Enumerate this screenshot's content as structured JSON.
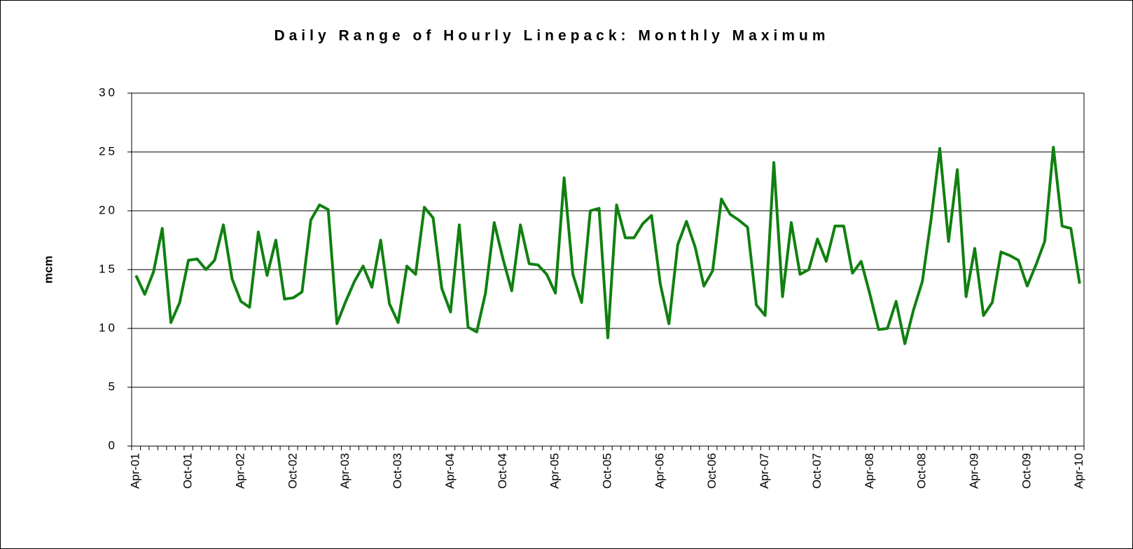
{
  "chart_data": {
    "type": "line",
    "title": "Daily Range of Hourly Linepack: Monthly Maximum",
    "y_label": "mcm",
    "categories": [
      "Apr-01",
      null,
      null,
      null,
      null,
      null,
      "Oct-01",
      null,
      null,
      null,
      null,
      null,
      "Apr-02",
      null,
      null,
      null,
      null,
      null,
      "Oct-02",
      null,
      null,
      null,
      null,
      null,
      "Apr-03",
      null,
      null,
      null,
      null,
      null,
      "Oct-03",
      null,
      null,
      null,
      null,
      null,
      "Apr-04",
      null,
      null,
      null,
      null,
      null,
      "Oct-04",
      null,
      null,
      null,
      null,
      null,
      "Apr-05",
      null,
      null,
      null,
      null,
      null,
      "Oct-05",
      null,
      null,
      null,
      null,
      null,
      "Apr-06",
      null,
      null,
      null,
      null,
      null,
      "Oct-06",
      null,
      null,
      null,
      null,
      null,
      "Apr-07",
      null,
      null,
      null,
      null,
      null,
      "Oct-07",
      null,
      null,
      null,
      null,
      null,
      "Apr-08",
      null,
      null,
      null,
      null,
      null,
      "Oct-08",
      null,
      null,
      null,
      null,
      null,
      "Apr-09",
      null,
      null,
      null,
      null,
      null,
      "Oct-09",
      null,
      null,
      null,
      null,
      null,
      "Apr-10"
    ],
    "series": [
      {
        "color": "#108010",
        "values": [
          14.5,
          12.9,
          14.8,
          18.5,
          10.5,
          12.2,
          15.8,
          15.9,
          15.0,
          15.8,
          18.8,
          14.2,
          12.3,
          11.8,
          18.2,
          14.5,
          17.5,
          12.5,
          12.6,
          13.1,
          19.2,
          20.5,
          20.1,
          10.4,
          12.3,
          14.0,
          15.3,
          13.5,
          17.5,
          12.1,
          10.5,
          15.3,
          14.6,
          20.3,
          19.4,
          13.4,
          11.4,
          18.8,
          10.1,
          9.7,
          13.0,
          19.0,
          15.9,
          13.2,
          18.8,
          15.5,
          15.4,
          14.6,
          13.0,
          22.8,
          14.6,
          12.2,
          20.0,
          20.2,
          9.2,
          20.5,
          17.7,
          17.7,
          18.9,
          19.6,
          13.8,
          10.4,
          17.1,
          19.1,
          16.9,
          13.6,
          14.9,
          21.0,
          19.7,
          19.2,
          18.6,
          12.0,
          11.1,
          24.1,
          12.7,
          19.0,
          14.6,
          15.0,
          17.6,
          15.7,
          18.7,
          18.7,
          14.7,
          15.7,
          12.9,
          9.9,
          10.0,
          12.3,
          8.7,
          11.6,
          14.0,
          19.3,
          25.3,
          17.4,
          23.5,
          12.7,
          16.8,
          11.1,
          12.2,
          16.5,
          16.2,
          15.8,
          13.6,
          15.4,
          17.4,
          25.4,
          18.7,
          18.5,
          13.8
        ]
      }
    ],
    "ylim": [
      0,
      30
    ],
    "yticks": [
      0,
      5,
      10,
      15,
      20,
      25,
      30
    ],
    "grid": true
  }
}
